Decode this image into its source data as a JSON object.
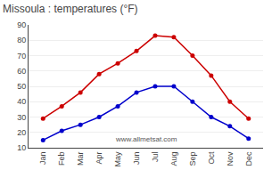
{
  "chart_data": {
    "type": "line",
    "title": "Missoula : temperatures (°F)",
    "categories": [
      "Jan",
      "Feb",
      "Mar",
      "Apr",
      "May",
      "Jun",
      "Jul",
      "Aug",
      "Sep",
      "Oct",
      "Nov",
      "Dec"
    ],
    "series": [
      {
        "color": "#cc0000",
        "values": [
          29,
          37,
          46,
          58,
          65,
          73,
          83,
          82,
          70,
          57,
          40,
          29
        ]
      },
      {
        "color": "#0000cc",
        "values": [
          15,
          21,
          25,
          30,
          37,
          46,
          50,
          50,
          40,
          30,
          24,
          16
        ]
      }
    ],
    "ylim": [
      10,
      90
    ],
    "yticks": [
      10,
      20,
      30,
      40,
      50,
      60,
      70,
      80,
      90
    ],
    "grid": true,
    "marker": "circle",
    "annotations": [
      "www.allmetsat.com"
    ]
  }
}
